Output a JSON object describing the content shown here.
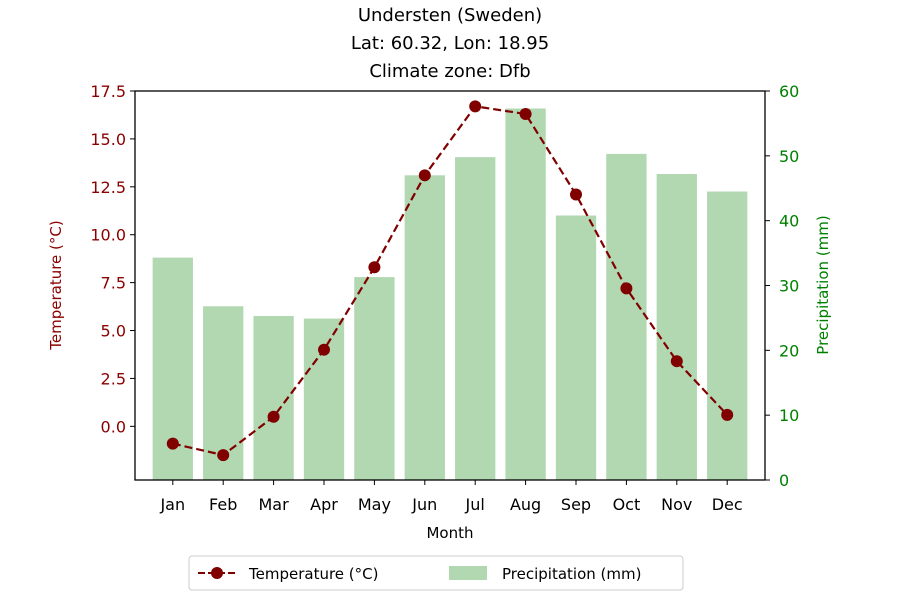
{
  "chart_data": {
    "type": "bar+line",
    "title_lines": [
      "Understen (Sweden)",
      "Lat: 60.32, Lon: 18.95",
      "Climate zone: Dfb"
    ],
    "categories": [
      "Jan",
      "Feb",
      "Mar",
      "Apr",
      "May",
      "Jun",
      "Jul",
      "Aug",
      "Sep",
      "Oct",
      "Nov",
      "Dec"
    ],
    "xlabel": "Month",
    "ylabel_left": "Temperature (°C)",
    "ylabel_right": "Precipitation (mm)",
    "ylim_left": [
      -2.8,
      17.5
    ],
    "ylim_right": [
      0,
      60
    ],
    "yticks_left": [
      "0.0",
      "2.5",
      "5.0",
      "7.5",
      "10.0",
      "12.5",
      "15.0",
      "17.5"
    ],
    "yticks_right": [
      "0",
      "10",
      "20",
      "30",
      "40",
      "50",
      "60"
    ],
    "series": [
      {
        "name": "Temperature (°C)",
        "kind": "line",
        "axis": "left",
        "color": "#800000",
        "style": "dashed with circle markers",
        "values": [
          -0.9,
          -1.5,
          0.5,
          4.0,
          8.3,
          13.1,
          16.7,
          16.3,
          12.1,
          7.2,
          3.4,
          0.6
        ]
      },
      {
        "name": "Precipitation (mm)",
        "kind": "bar",
        "axis": "right",
        "color": "#b2d8b2",
        "values": [
          34.3,
          26.8,
          25.3,
          24.9,
          31.3,
          47.0,
          49.8,
          57.3,
          40.8,
          50.3,
          47.2,
          44.5
        ]
      }
    ],
    "left_axis_color": "#8b0000",
    "right_axis_color": "#008000",
    "legend_position": "bottom-center"
  }
}
